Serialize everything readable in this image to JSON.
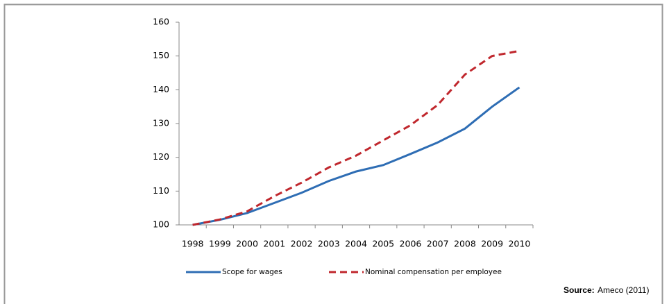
{
  "chart_data": {
    "type": "line",
    "categories": [
      "1998",
      "1999",
      "2000",
      "2001",
      "2002",
      "2003",
      "2004",
      "2005",
      "2006",
      "2007",
      "2008",
      "2009",
      "2010"
    ],
    "series": [
      {
        "name": "Scope for wages",
        "color": "#2e6db4",
        "dash": false,
        "values": [
          100,
          101.5,
          103.5,
          106.5,
          109.5,
          113,
          115.8,
          117.7,
          121,
          124.4,
          128.5,
          135,
          140.7
        ]
      },
      {
        "name": "Nominal compensation per employee",
        "color": "#c0272d",
        "dash": true,
        "values": [
          100,
          101.6,
          104,
          108.5,
          112.5,
          117,
          120.5,
          125,
          129.5,
          135.5,
          144.5,
          150,
          151.5
        ]
      }
    ],
    "ylim": [
      100,
      160
    ],
    "yticks": [
      100,
      110,
      120,
      130,
      140,
      150,
      160
    ],
    "grid": false,
    "legend": "bottom",
    "source_label": "Source:",
    "source": "Ameco (2011)"
  }
}
